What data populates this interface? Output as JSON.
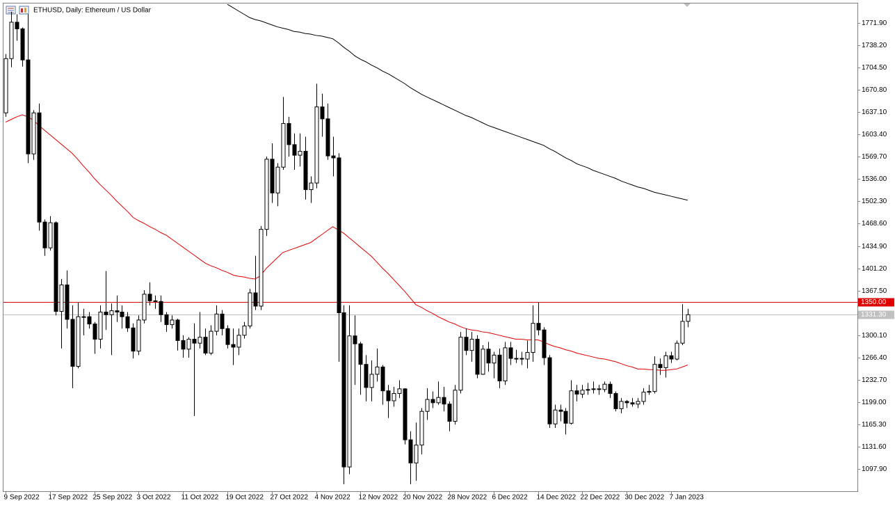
{
  "chart_data": {
    "type": "candlestick",
    "title": "ETHUSD, Daily:  Ethereum / US Dollar",
    "categories": [
      "9 Sep 2022",
      null,
      null,
      null,
      null,
      null,
      null,
      null,
      "17 Sep 2022",
      null,
      null,
      null,
      null,
      null,
      null,
      null,
      "25 Sep 2022",
      null,
      null,
      null,
      null,
      null,
      null,
      null,
      "3 Oct 2022",
      null,
      null,
      null,
      null,
      null,
      null,
      null,
      "11 Oct 2022",
      null,
      null,
      null,
      null,
      null,
      null,
      null,
      "19 Oct 2022",
      null,
      null,
      null,
      null,
      null,
      null,
      null,
      "27 Oct 2022",
      null,
      null,
      null,
      null,
      null,
      null,
      null,
      "4 Nov 2022",
      null,
      null,
      null,
      null,
      null,
      null,
      null,
      "12 Nov 2022",
      null,
      null,
      null,
      null,
      null,
      null,
      null,
      "20 Nov 2022",
      null,
      null,
      null,
      null,
      null,
      null,
      null,
      "28 Nov 2022",
      null,
      null,
      null,
      null,
      null,
      null,
      null,
      "6 Dec 2022",
      null,
      null,
      null,
      null,
      null,
      null,
      null,
      "14 Dec 2022",
      null,
      null,
      null,
      null,
      null,
      null,
      null,
      "22 Dec 2022",
      null,
      null,
      null,
      null,
      null,
      null,
      null,
      "30 Dec 2022",
      null,
      null,
      null,
      null,
      null,
      null,
      null,
      "7 Jan 2023",
      null,
      null,
      null
    ],
    "open": [
      1636,
      1718,
      1773,
      1763,
      1716,
      1574,
      1636,
      1471,
      1432,
      1470,
      1336,
      1376,
      1324,
      1253,
      1328,
      1328,
      1317,
      1294,
      1335,
      1331,
      1337,
      1335,
      1328,
      1311,
      1276,
      1323,
      1362,
      1352,
      1351,
      1331,
      1316,
      1323,
      1292,
      1279,
      1294,
      1288,
      1297,
      1273,
      1306,
      1332,
      1310,
      1286,
      1282,
      1300,
      1314,
      1364,
      1344,
      1460,
      1566,
      1515,
      1554,
      1620,
      1588,
      1572,
      1578,
      1520,
      1530,
      1645,
      1627,
      1571,
      1568,
      1334,
      1101,
      1299,
      1287,
      1256,
      1221,
      1241,
      1252,
      1216,
      1201,
      1212,
      1219,
      1142,
      1107,
      1134,
      1185,
      1203,
      1198,
      1206,
      1196,
      1170,
      1217,
      1297,
      1277,
      1294,
      1241,
      1279,
      1258,
      1270,
      1231,
      1281,
      1265,
      1265,
      1264,
      1274,
      1318,
      1308,
      1266,
      1166,
      1187,
      1185,
      1167,
      1216,
      1211,
      1217,
      1218,
      1219,
      1218,
      1226,
      1212,
      1189,
      1200,
      1198,
      1196,
      1200,
      1214,
      1215,
      1256,
      1251,
      1269,
      1264,
      1288,
      1321
    ],
    "high": [
      1725,
      1789,
      1785,
      1765,
      1785,
      1640,
      1650,
      1475,
      1480,
      1472,
      1385,
      1398,
      1345,
      1350,
      1340,
      1335,
      1320,
      1345,
      1397,
      1348,
      1360,
      1345,
      1335,
      1318,
      1330,
      1368,
      1380,
      1360,
      1360,
      1335,
      1330,
      1325,
      1300,
      1297,
      1318,
      1335,
      1310,
      1315,
      1345,
      1338,
      1315,
      1310,
      1310,
      1320,
      1370,
      1420,
      1465,
      1570,
      1590,
      1560,
      1660,
      1630,
      1605,
      1605,
      1600,
      1540,
      1680,
      1665,
      1650,
      1600,
      1575,
      1345,
      1345,
      1330,
      1290,
      1270,
      1262,
      1280,
      1255,
      1225,
      1222,
      1232,
      1220,
      1155,
      1168,
      1190,
      1220,
      1215,
      1230,
      1222,
      1200,
      1225,
      1305,
      1310,
      1305,
      1300,
      1285,
      1290,
      1275,
      1280,
      1290,
      1290,
      1278,
      1275,
      1292,
      1345,
      1350,
      1312,
      1270,
      1195,
      1195,
      1190,
      1232,
      1225,
      1225,
      1228,
      1230,
      1225,
      1230,
      1230,
      1215,
      1205,
      1202,
      1205,
      1205,
      1220,
      1225,
      1268,
      1265,
      1275,
      1275,
      1292,
      1347,
      1340
    ],
    "low": [
      1630,
      1705,
      1745,
      1706,
      1560,
      1565,
      1458,
      1420,
      1428,
      1330,
      1280,
      1310,
      1220,
      1250,
      1300,
      1310,
      1272,
      1280,
      1308,
      1270,
      1320,
      1310,
      1305,
      1265,
      1270,
      1318,
      1345,
      1340,
      1320,
      1305,
      1310,
      1277,
      1266,
      1266,
      1178,
      1280,
      1270,
      1270,
      1300,
      1300,
      1280,
      1255,
      1270,
      1295,
      1310,
      1338,
      1338,
      1450,
      1500,
      1495,
      1550,
      1570,
      1550,
      1555,
      1505,
      1500,
      1522,
      1600,
      1565,
      1540,
      1260,
      1075,
      1090,
      1225,
      1210,
      1200,
      1200,
      1230,
      1195,
      1175,
      1192,
      1205,
      1135,
      1075,
      1080,
      1120,
      1172,
      1190,
      1195,
      1185,
      1155,
      1165,
      1212,
      1270,
      1260,
      1235,
      1240,
      1245,
      1235,
      1220,
      1225,
      1255,
      1258,
      1255,
      1250,
      1260,
      1300,
      1255,
      1160,
      1160,
      1170,
      1150,
      1165,
      1200,
      1205,
      1210,
      1212,
      1210,
      1214,
      1205,
      1185,
      1182,
      1190,
      1192,
      1190,
      1195,
      1210,
      1212,
      1240,
      1236,
      1258,
      1262,
      1285,
      1312
    ],
    "close": [
      1718,
      1773,
      1763,
      1716,
      1574,
      1636,
      1471,
      1432,
      1470,
      1336,
      1376,
      1324,
      1253,
      1328,
      1328,
      1317,
      1294,
      1335,
      1331,
      1337,
      1335,
      1328,
      1311,
      1276,
      1323,
      1362,
      1352,
      1351,
      1331,
      1316,
      1323,
      1292,
      1279,
      1294,
      1288,
      1297,
      1273,
      1306,
      1332,
      1310,
      1286,
      1282,
      1300,
      1314,
      1364,
      1344,
      1460,
      1566,
      1515,
      1554,
      1620,
      1588,
      1572,
      1578,
      1520,
      1530,
      1645,
      1627,
      1571,
      1568,
      1334,
      1101,
      1299,
      1287,
      1256,
      1221,
      1241,
      1252,
      1216,
      1201,
      1212,
      1219,
      1142,
      1107,
      1134,
      1185,
      1203,
      1198,
      1206,
      1196,
      1170,
      1217,
      1297,
      1277,
      1294,
      1241,
      1279,
      1258,
      1270,
      1231,
      1281,
      1265,
      1265,
      1264,
      1274,
      1318,
      1308,
      1266,
      1166,
      1187,
      1185,
      1167,
      1216,
      1211,
      1217,
      1218,
      1219,
      1218,
      1226,
      1212,
      1189,
      1200,
      1198,
      1196,
      1200,
      1214,
      1215,
      1256,
      1251,
      1269,
      1264,
      1288,
      1321,
      1331
    ],
    "up_color": "#ffffff",
    "down_color": "#000000",
    "lines": [
      {
        "color": "#000000",
        "values": [
          null,
          null,
          null,
          null,
          null,
          null,
          null,
          null,
          null,
          null,
          null,
          null,
          null,
          null,
          null,
          null,
          null,
          null,
          null,
          null,
          null,
          null,
          null,
          null,
          null,
          null,
          null,
          null,
          null,
          null,
          null,
          null,
          null,
          null,
          null,
          null,
          null,
          null,
          null,
          null,
          1800,
          1795,
          1790,
          1785,
          1780,
          1777,
          1775,
          1772,
          1769,
          1766,
          1764,
          1762,
          1759,
          1758,
          1756,
          1755,
          1753,
          1752,
          1750,
          1748,
          1742,
          1735,
          1729,
          1722,
          1717,
          1713,
          1708,
          1704,
          1699,
          1695,
          1690,
          1685,
          1680,
          1674,
          1669,
          1664,
          1660,
          1656,
          1652,
          1648,
          1644,
          1640,
          1636,
          1632,
          1629,
          1625,
          1621,
          1617,
          1614,
          1611,
          1608,
          1605,
          1602,
          1599,
          1596,
          1593,
          1590,
          1587,
          1582,
          1578,
          1573,
          1568,
          1564,
          1559,
          1556,
          1553,
          1549,
          1546,
          1543,
          1540,
          1537,
          1533,
          1530,
          1527,
          1524,
          1522,
          1519,
          1516,
          1514,
          1512,
          1510,
          1508,
          1506,
          1504
        ]
      },
      {
        "color": "#e00000",
        "values": [
          1622,
          1626,
          1630,
          1633,
          1630,
          1625,
          1617,
          1610,
          1603,
          1596,
          1589,
          1582,
          1575,
          1566,
          1556,
          1547,
          1537,
          1528,
          1520,
          1512,
          1503,
          1495,
          1487,
          1478,
          1473,
          1469,
          1464,
          1460,
          1455,
          1451,
          1445,
          1439,
          1433,
          1427,
          1421,
          1415,
          1409,
          1405,
          1402,
          1398,
          1395,
          1391,
          1389,
          1388,
          1386,
          1385,
          1390,
          1401,
          1409,
          1417,
          1425,
          1428,
          1431,
          1434,
          1437,
          1440,
          1446,
          1452,
          1458,
          1464,
          1459,
          1454,
          1447,
          1440,
          1433,
          1426,
          1419,
          1410,
          1401,
          1393,
          1384,
          1375,
          1366,
          1356,
          1346,
          1342,
          1337,
          1333,
          1328,
          1324,
          1320,
          1317,
          1313,
          1310,
          1308,
          1307,
          1305,
          1304,
          1302,
          1300,
          1298,
          1296,
          1294,
          1294,
          1293,
          1293,
          1293,
          1290,
          1286,
          1283,
          1281,
          1278,
          1276,
          1273,
          1271,
          1269,
          1267,
          1265,
          1264,
          1262,
          1260,
          1257,
          1254,
          1252,
          1249,
          1249,
          1248,
          1248,
          1247,
          1247,
          1248,
          1249,
          1252,
          1255
        ]
      }
    ],
    "levels": [
      {
        "value": 1350,
        "label": "1350.00",
        "color": "#e00000",
        "text_color": "#ffffff"
      },
      {
        "value": 1331.3,
        "label": "1331.30",
        "color": "#c0c0c0",
        "text_color": "#ffffff"
      }
    ],
    "ylim": [
      1064.3,
      1801.3
    ],
    "yticks": [
      {
        "value": 1097.9,
        "label": "1097.90"
      },
      {
        "value": 1131.6,
        "label": "1131.60"
      },
      {
        "value": 1165.3,
        "label": "1165.30"
      },
      {
        "value": 1199,
        "label": "1199.00"
      },
      {
        "value": 1232.7,
        "label": "1232.70"
      },
      {
        "value": 1266.4,
        "label": "1266.40"
      },
      {
        "value": 1300.1,
        "label": "1300.10"
      },
      {
        "value": 1367.5,
        "label": "1367.50"
      },
      {
        "value": 1401.2,
        "label": "1401.20"
      },
      {
        "value": 1434.9,
        "label": "1434.90"
      },
      {
        "value": 1468.6,
        "label": "1468.60"
      },
      {
        "value": 1502.3,
        "label": "1502.30"
      },
      {
        "value": 1536,
        "label": "1536.00"
      },
      {
        "value": 1569.7,
        "label": "1569.70"
      },
      {
        "value": 1603.4,
        "label": "1603.40"
      },
      {
        "value": 1637.1,
        "label": "1637.10"
      },
      {
        "value": 1670.8,
        "label": "1670.80"
      },
      {
        "value": 1704.5,
        "label": "1704.50"
      },
      {
        "value": 1738.2,
        "label": "1738.20"
      },
      {
        "value": 1771.9,
        "label": "1771.90"
      }
    ],
    "grid": false
  }
}
